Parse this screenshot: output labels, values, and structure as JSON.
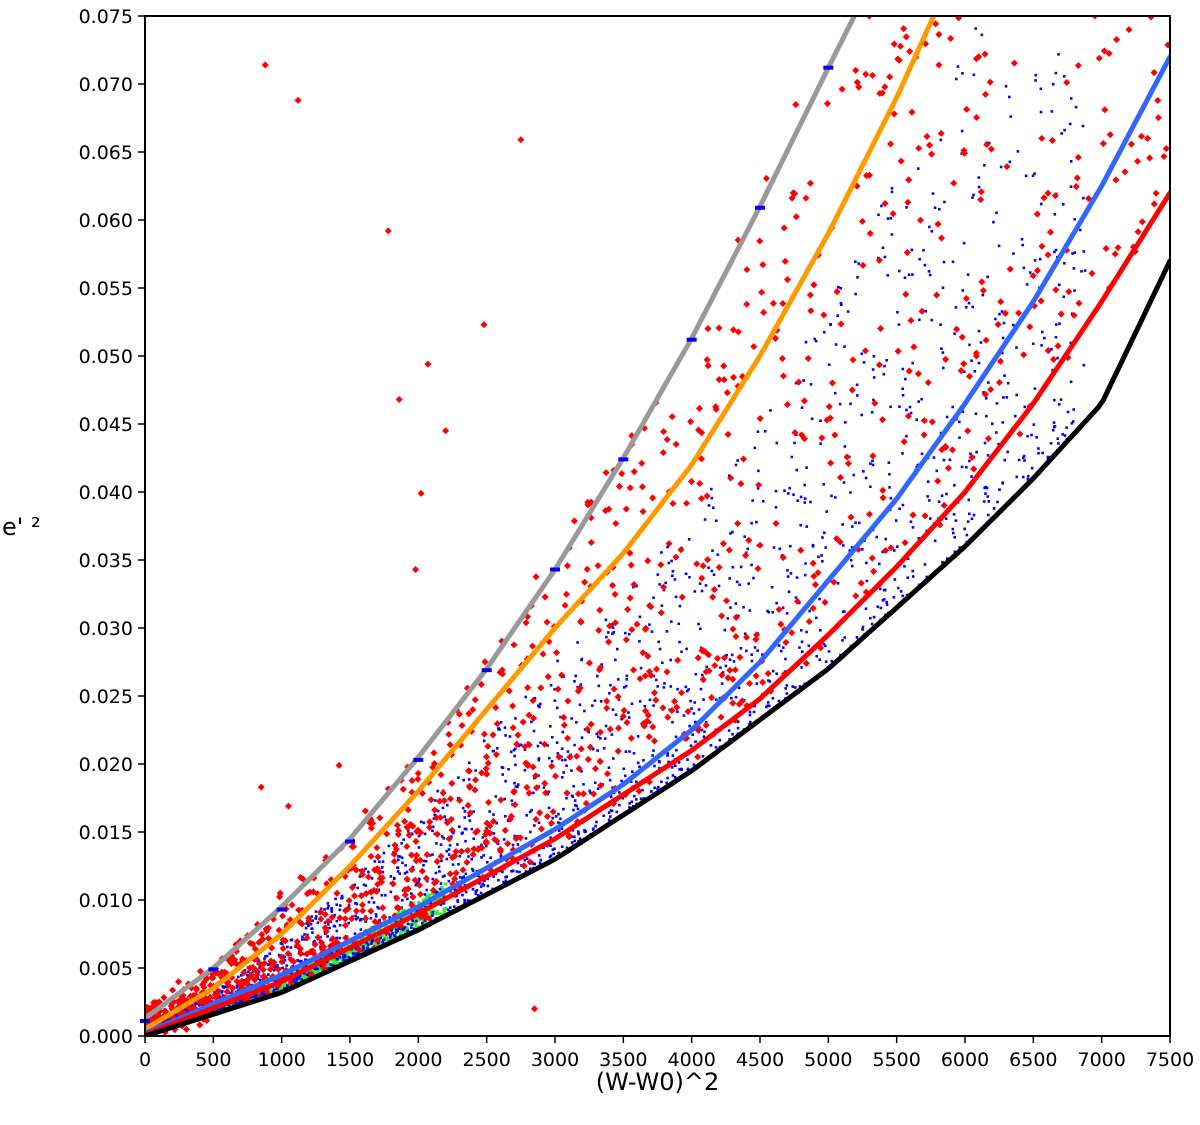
{
  "chart_data": {
    "type": "scatter",
    "title": "",
    "xlabel": "(W-W0)^2",
    "ylabel": "e' ²",
    "xlim": [
      0,
      7500
    ],
    "ylim": [
      0,
      0.075
    ],
    "grid": false,
    "legend": "none",
    "x_ticks": [
      0,
      500,
      1000,
      1500,
      2000,
      2500,
      3000,
      3500,
      4000,
      4500,
      5000,
      5500,
      6000,
      6500,
      7000,
      7500
    ],
    "x_tick_labels": [
      "0",
      "500",
      "1000",
      "1500",
      "2000",
      "2500",
      "3000",
      "3500",
      "4000",
      "4500",
      "5000",
      "5500",
      "6000",
      "6500",
      "7000",
      "7500"
    ],
    "y_ticks": [
      0,
      0.005,
      0.01,
      0.015,
      0.02,
      0.025,
      0.03,
      0.035,
      0.04,
      0.045,
      0.05,
      0.055,
      0.06,
      0.065,
      0.07,
      0.075
    ],
    "y_tick_labels": [
      "0.000",
      "0.005",
      "0.010",
      "0.015",
      "0.020",
      "0.025",
      "0.030",
      "0.035",
      "0.040",
      "0.045",
      "0.050",
      "0.055",
      "0.060",
      "0.065",
      "0.070",
      "0.075"
    ],
    "curves": [
      {
        "name": "gray-curve",
        "color": "#999999",
        "x": [
          0,
          500,
          1000,
          1500,
          2000,
          2500,
          3000,
          3500,
          4000,
          4500,
          5000,
          5200
        ],
        "y": [
          0.0013,
          0.005,
          0.0095,
          0.0145,
          0.0205,
          0.027,
          0.0343,
          0.0425,
          0.0513,
          0.061,
          0.0712,
          0.0752
        ]
      },
      {
        "name": "orange-curve",
        "color": "#ff9900",
        "x": [
          0,
          500,
          1000,
          1500,
          2000,
          2500,
          3000,
          3500,
          4000,
          4500,
          5000,
          5500,
          5780
        ],
        "y": [
          0.0005,
          0.0035,
          0.0075,
          0.0125,
          0.018,
          0.024,
          0.03,
          0.0355,
          0.042,
          0.05,
          0.059,
          0.069,
          0.0752
        ]
      },
      {
        "name": "blue-curve",
        "color": "#3366ff",
        "x": [
          0,
          1000,
          2000,
          3000,
          3500,
          4000,
          4500,
          5000,
          5500,
          6000,
          6500,
          7000,
          7500
        ],
        "y": [
          0.0002,
          0.0045,
          0.0095,
          0.0152,
          0.0185,
          0.0225,
          0.0275,
          0.0335,
          0.0395,
          0.0465,
          0.054,
          0.0625,
          0.072
        ]
      },
      {
        "name": "red-curve",
        "color": "#ff0000",
        "x": [
          0,
          1000,
          2000,
          3000,
          4000,
          4500,
          5000,
          5500,
          6000,
          6500,
          7000,
          7500
        ],
        "y": [
          0.0001,
          0.004,
          0.009,
          0.0145,
          0.021,
          0.0248,
          0.0295,
          0.0345,
          0.04,
          0.0465,
          0.054,
          0.062
        ]
      },
      {
        "name": "black-curve",
        "color": "#000000",
        "x": [
          0,
          1000,
          2000,
          3000,
          4000,
          5000,
          6000,
          6500,
          7000,
          7500
        ],
        "y": [
          0.0,
          0.0032,
          0.0078,
          0.013,
          0.0195,
          0.027,
          0.036,
          0.041,
          0.0465,
          0.057
        ]
      }
    ],
    "markers": {
      "name": "blue-dash-markers",
      "color": "#0000ee",
      "x": [
        0,
        500,
        1000,
        1500,
        2000,
        2500,
        3000,
        3500,
        4000,
        4500,
        5000
      ],
      "y": [
        0.0011,
        0.0049,
        0.0093,
        0.0143,
        0.0203,
        0.0269,
        0.0343,
        0.0424,
        0.0512,
        0.0609,
        0.0712
      ]
    },
    "scatter_series": [
      {
        "name": "green-points",
        "color": "#33ee33",
        "x_range": [
          0,
          2200
        ],
        "count": 1400,
        "model": "near-lower-bound",
        "lower_curve": "black-curve",
        "upper_factor": 0.22
      },
      {
        "name": "blue-points",
        "color": "#0000ff",
        "x_range": [
          0,
          6900
        ],
        "count": 2600,
        "model": "between-black-and-orange",
        "lower_curve": "black-curve",
        "upper_curve": "orange-curve"
      },
      {
        "name": "red-points",
        "color": "#ff0000",
        "x_range": [
          0,
          7500
        ],
        "count": 1300,
        "model": "above-red-wide",
        "lower_curve": "red-curve",
        "upper_curve": "gray-curve"
      },
      {
        "name": "red-outliers",
        "color": "#ff0000",
        "x": [
          880,
          1120,
          1780,
          1860,
          2020,
          2070,
          2200,
          2480,
          2750,
          2850,
          1980,
          1420,
          850,
          1050,
          5200,
          5300,
          6100,
          6950,
          7200
        ],
        "y": [
          0.0714,
          0.0688,
          0.0592,
          0.0468,
          0.0399,
          0.0494,
          0.0445,
          0.0523,
          0.0659,
          0.002,
          0.0343,
          0.0199,
          0.0183,
          0.0169,
          0.071,
          0.075,
          0.072,
          0.075,
          0.074
        ]
      }
    ]
  }
}
